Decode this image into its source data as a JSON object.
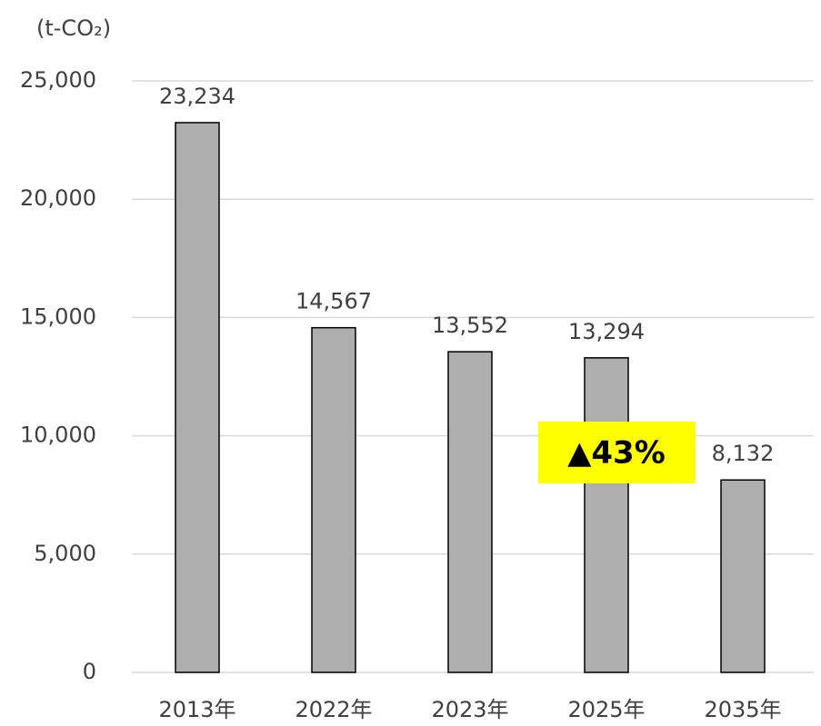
{
  "chart_data": {
    "type": "bar",
    "unit_label": "(t-CO₂)",
    "categories": [
      "2013年",
      "2022年",
      "2023年",
      "2025年",
      "2035年"
    ],
    "values": [
      23234,
      14567,
      13552,
      13294,
      8132
    ],
    "value_labels": [
      "23,234",
      "14,567",
      "13,552",
      "13,294",
      "8,132"
    ],
    "color": "#aeaeae",
    "ylim": [
      0,
      25000
    ],
    "yticks": [
      0,
      {
        "value": 5000,
        "label": "5,000"
      },
      {
        "value": 10000,
        "label": "10,000"
      },
      {
        "value": 15000,
        "label": "15,000"
      },
      {
        "value": 20000,
        "label": "20,000"
      },
      {
        "value": 25000,
        "label": "25,000"
      }
    ],
    "grid": true,
    "annotation": "▲43%"
  }
}
